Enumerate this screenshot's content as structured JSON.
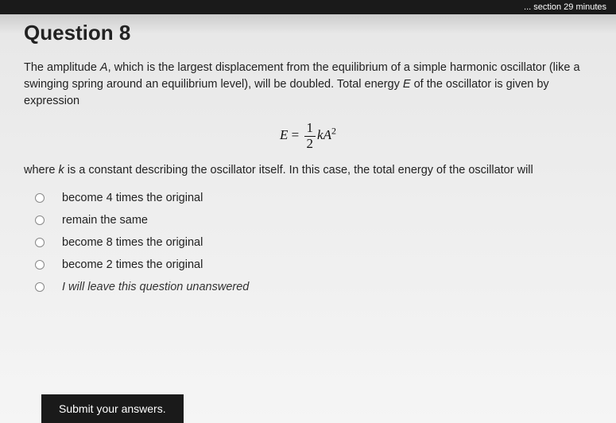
{
  "top_bar_text": "... section 29 minutes",
  "title": "Question 8",
  "prompt_pre": "The amplitude ",
  "prompt_var_A": "A",
  "prompt_mid1": ", which is the largest displacement from the equilibrium of a simple harmonic oscillator (like a swinging spring around an equilibrium level), will be doubled. Total energy ",
  "prompt_var_E": "E",
  "prompt_mid2": " of the oscillator is given by expression",
  "equation": {
    "lhs": "E",
    "equals": " = ",
    "frac_num": "1",
    "frac_den": "2",
    "k": "k",
    "A": "A",
    "sup": "2"
  },
  "post_eq_pre": "where ",
  "post_eq_k": "k",
  "post_eq_rest": " is a constant describing the oscillator itself. In this case, the total energy of the oscillator will",
  "options": [
    "become 4 times the original",
    "remain the same",
    "become 8 times the original",
    "become 2 times the original",
    "I will leave this question unanswered"
  ],
  "submit_label": "Submit your answers."
}
